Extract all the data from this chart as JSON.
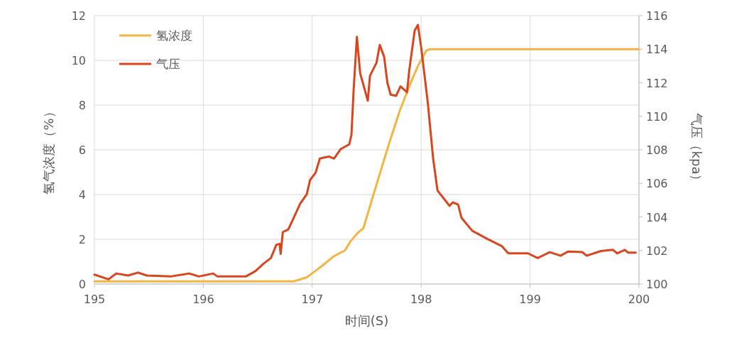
{
  "chart_data": {
    "type": "line",
    "xlabel": "时间(S)",
    "ylabel": "氢气浓度（%）",
    "y2label": "气压（kpa）",
    "xlim": [
      195,
      200
    ],
    "xticks": [
      195,
      196,
      197,
      198,
      199,
      200
    ],
    "ylim": [
      0,
      12
    ],
    "yticks": [
      0,
      2,
      4,
      6,
      8,
      10,
      12
    ],
    "y2lim": [
      100,
      116
    ],
    "y2ticks": [
      100,
      102,
      104,
      106,
      108,
      110,
      112,
      114,
      116
    ],
    "grid": true,
    "legend": "top left",
    "series": [
      {
        "name": "氢浓度",
        "color": "#f2b544",
        "x": [
          195,
          196.83,
          196.95,
          197.0,
          197.1,
          197.2,
          197.3,
          197.35,
          197.42,
          197.47,
          197.55,
          197.7,
          197.8,
          197.9,
          197.97,
          198.05,
          198.08,
          200
        ],
        "values": [
          0.12,
          0.12,
          0.3,
          0.48,
          0.85,
          1.25,
          1.5,
          1.9,
          2.3,
          2.5,
          3.8,
          6.2,
          7.7,
          8.95,
          9.75,
          10.45,
          10.5,
          10.5
        ]
      },
      {
        "name": "气压",
        "color": "#d9461e",
        "axis": "y2",
        "x": [
          195.0,
          195.13,
          195.2,
          195.31,
          195.4,
          195.48,
          195.7,
          195.87,
          195.96,
          196.09,
          196.13,
          196.39,
          196.48,
          196.55,
          196.62,
          196.67,
          196.7,
          196.71,
          196.73,
          196.78,
          196.83,
          196.89,
          196.95,
          196.98,
          197.03,
          197.07,
          197.15,
          197.2,
          197.26,
          197.34,
          197.36,
          197.38,
          197.41,
          197.44,
          197.51,
          197.53,
          197.59,
          197.62,
          197.66,
          197.69,
          197.72,
          197.77,
          197.81,
          197.87,
          197.89,
          197.94,
          197.97,
          198.0,
          198.06,
          198.11,
          198.15,
          198.21,
          198.26,
          198.29,
          198.34,
          198.37,
          198.47,
          198.61,
          198.74,
          198.8,
          198.98,
          199.07,
          199.18,
          199.28,
          199.35,
          199.48,
          199.52,
          199.65,
          199.76,
          199.8,
          199.87,
          199.9,
          199.97
        ],
        "values": [
          100.56,
          100.28,
          100.63,
          100.51,
          100.68,
          100.51,
          100.45,
          100.63,
          100.45,
          100.63,
          100.45,
          100.45,
          100.78,
          101.2,
          101.55,
          102.33,
          102.4,
          101.8,
          103.1,
          103.25,
          103.95,
          104.8,
          105.36,
          106.2,
          106.63,
          107.48,
          107.6,
          107.48,
          108.04,
          108.33,
          108.9,
          111.57,
          114.74,
          112.56,
          110.93,
          112.42,
          113.19,
          114.25,
          113.55,
          111.99,
          111.29,
          111.22,
          111.78,
          111.43,
          112.7,
          115.1,
          115.45,
          114.11,
          110.87,
          107.48,
          105.57,
          105.08,
          104.66,
          104.87,
          104.73,
          103.95,
          103.17,
          102.68,
          102.26,
          101.83,
          101.83,
          101.55,
          101.9,
          101.69,
          101.94,
          101.9,
          101.69,
          101.97,
          102.04,
          101.83,
          102.04,
          101.87,
          101.87
        ]
      }
    ]
  }
}
